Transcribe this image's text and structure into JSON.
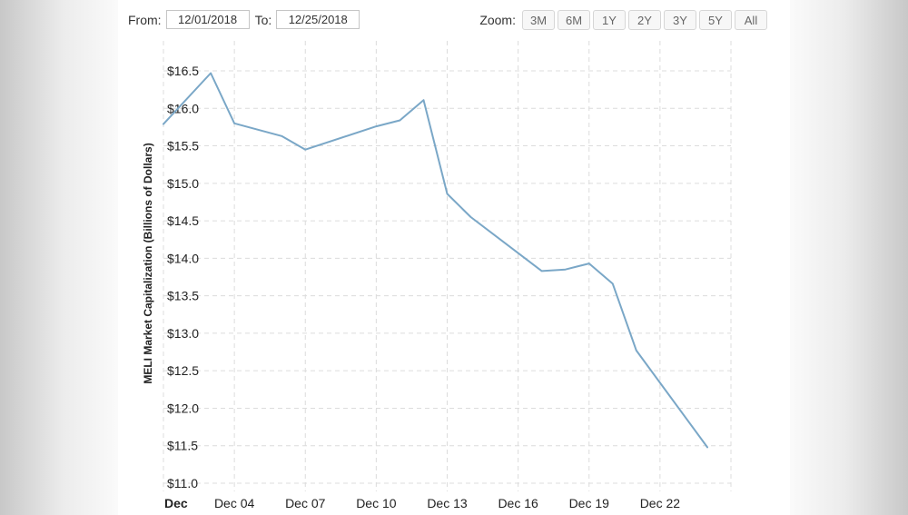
{
  "range_selector": {
    "from_label": "From:",
    "from_value": "12/01/2018",
    "to_label": "To:",
    "to_value": "12/25/2018"
  },
  "zoom": {
    "label": "Zoom:",
    "buttons": [
      "3M",
      "6M",
      "1Y",
      "2Y",
      "3Y",
      "5Y",
      "All"
    ]
  },
  "chart_data": {
    "type": "line",
    "title": "",
    "xlabel": "",
    "ylabel": "MELI Market Capitalization (Billions of Dollars)",
    "y_tick_format": "$",
    "ylim": [
      11.0,
      16.5
    ],
    "y_ticks": [
      11.0,
      11.5,
      12.0,
      12.5,
      13.0,
      13.5,
      14.0,
      14.5,
      15.0,
      15.5,
      16.0,
      16.5
    ],
    "x_start": "2018-12-01",
    "x_end": "2018-12-25",
    "x_ticks": [
      {
        "date": "2018-12-01",
        "label": "Dec",
        "bold": true
      },
      {
        "date": "2018-12-04",
        "label": "Dec 04",
        "bold": false
      },
      {
        "date": "2018-12-07",
        "label": "Dec 07",
        "bold": false
      },
      {
        "date": "2018-12-10",
        "label": "Dec 10",
        "bold": false
      },
      {
        "date": "2018-12-13",
        "label": "Dec 13",
        "bold": false
      },
      {
        "date": "2018-12-16",
        "label": "Dec 16",
        "bold": false
      },
      {
        "date": "2018-12-19",
        "label": "Dec 19",
        "bold": false
      },
      {
        "date": "2018-12-22",
        "label": "Dec 22",
        "bold": false
      }
    ],
    "grid": true,
    "line_color": "#7aa7c7",
    "series": [
      {
        "points": [
          {
            "x": "2018-12-01",
            "y": 15.79
          },
          {
            "x": "2018-12-03",
            "y": 16.47
          },
          {
            "x": "2018-12-04",
            "y": 15.8
          },
          {
            "x": "2018-12-06",
            "y": 15.63
          },
          {
            "x": "2018-12-07",
            "y": 15.45
          },
          {
            "x": "2018-12-10",
            "y": 15.76
          },
          {
            "x": "2018-12-11",
            "y": 15.84
          },
          {
            "x": "2018-12-12",
            "y": 16.11
          },
          {
            "x": "2018-12-13",
            "y": 14.86
          },
          {
            "x": "2018-12-14",
            "y": 14.55
          },
          {
            "x": "2018-12-17",
            "y": 13.83
          },
          {
            "x": "2018-12-18",
            "y": 13.85
          },
          {
            "x": "2018-12-19",
            "y": 13.93
          },
          {
            "x": "2018-12-20",
            "y": 13.66
          },
          {
            "x": "2018-12-21",
            "y": 12.77
          },
          {
            "x": "2018-12-24",
            "y": 11.48
          }
        ]
      }
    ]
  }
}
